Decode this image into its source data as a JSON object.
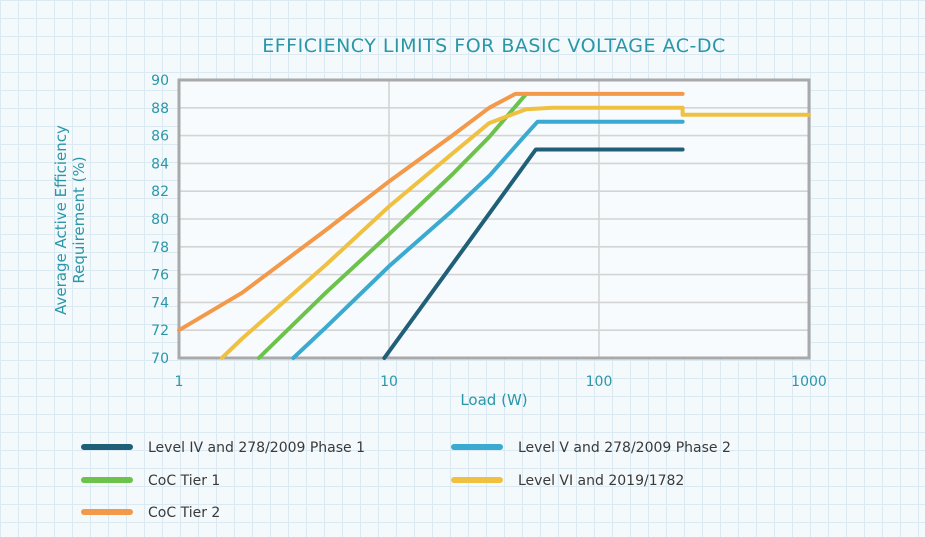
{
  "chart_data": {
    "type": "line",
    "title": "EFFICIENCY LIMITS FOR BASIC VOLTAGE AC-DC",
    "xlabel": "Load (W)",
    "ylabel": [
      "Average Active Efficiency",
      "Requirement (%)"
    ],
    "x_scale": "log",
    "xlim": [
      1,
      1000
    ],
    "ylim": [
      70,
      90
    ],
    "x_ticks": [
      1,
      10,
      100,
      1000
    ],
    "x_tick_labels": [
      "1",
      "10",
      "100",
      "1000"
    ],
    "y_ticks": [
      70,
      72,
      74,
      76,
      78,
      80,
      82,
      84,
      86,
      88,
      90
    ],
    "y_tick_labels": [
      "70",
      "72",
      "74",
      "76",
      "78",
      "80",
      "82",
      "84",
      "86",
      "88",
      "90"
    ],
    "grid": true,
    "legend_position": "bottom",
    "series": [
      {
        "name": "Level IV and 278/2009 Phase 1",
        "color": "#1f5f78",
        "points": [
          [
            9.5,
            70
          ],
          [
            50,
            85
          ],
          [
            250,
            85
          ]
        ]
      },
      {
        "name": "Level V and 278/2009 Phase 2",
        "color": "#3aaad0",
        "points": [
          [
            3.5,
            70
          ],
          [
            5,
            72.2
          ],
          [
            10,
            76.6
          ],
          [
            20,
            80.6
          ],
          [
            30,
            83.1
          ],
          [
            45,
            86.1
          ],
          [
            51,
            87
          ],
          [
            250,
            87
          ]
        ]
      },
      {
        "name": "CoC Tier 1",
        "color": "#6cc24a",
        "points": [
          [
            2.4,
            70
          ],
          [
            5,
            74.7
          ],
          [
            10,
            78.9
          ],
          [
            20,
            83.2
          ],
          [
            30,
            85.9
          ],
          [
            45,
            89
          ]
        ]
      },
      {
        "name": "Level VI and 2019/1782",
        "color": "#f0c040",
        "points": [
          [
            1.6,
            70
          ],
          [
            2,
            71.4
          ],
          [
            5,
            76.7
          ],
          [
            10,
            80.9
          ],
          [
            20,
            84.7
          ],
          [
            30,
            86.9
          ],
          [
            45,
            87.9
          ],
          [
            60,
            88
          ],
          [
            250,
            88
          ],
          [
            250,
            87.5
          ],
          [
            1000,
            87.5
          ]
        ]
      },
      {
        "name": "CoC Tier 2",
        "color": "#f2994a",
        "points": [
          [
            1,
            72
          ],
          [
            2,
            74.7
          ],
          [
            5,
            79.2
          ],
          [
            10,
            82.7
          ],
          [
            20,
            86
          ],
          [
            30,
            88
          ],
          [
            40,
            89
          ],
          [
            250,
            89
          ]
        ]
      }
    ]
  }
}
